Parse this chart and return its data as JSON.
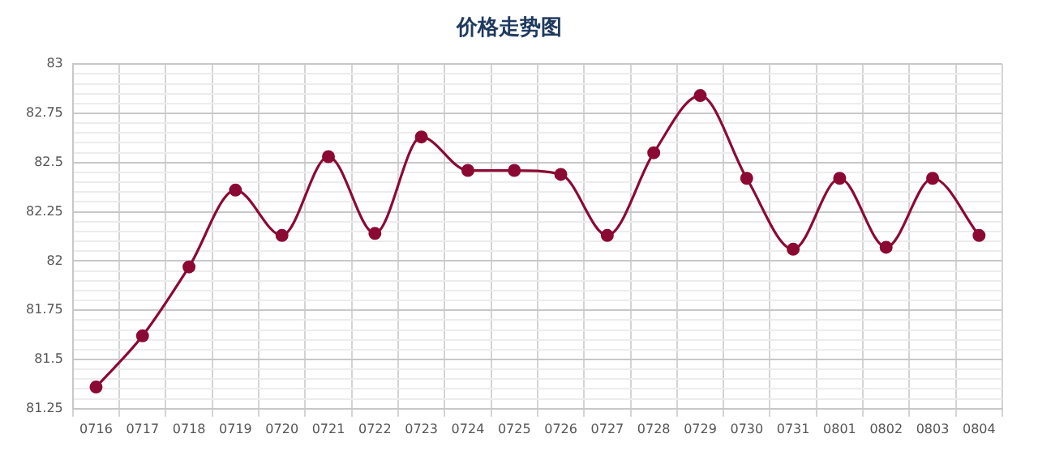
{
  "chart_data": {
    "type": "line",
    "title": "价格走势图",
    "categories": [
      "0716",
      "0717",
      "0718",
      "0719",
      "0720",
      "0721",
      "0722",
      "0723",
      "0724",
      "0725",
      "0726",
      "0727",
      "0728",
      "0729",
      "0730",
      "0731",
      "0801",
      "0802",
      "0803",
      "0804"
    ],
    "series": [
      {
        "color": "#8b0a34",
        "values": [
          81.36,
          81.62,
          81.97,
          82.36,
          82.13,
          82.53,
          82.14,
          82.63,
          82.46,
          82.46,
          82.44,
          82.13,
          82.55,
          82.84,
          82.42,
          82.06,
          82.42,
          82.07,
          82.42,
          82.13
        ]
      }
    ],
    "ylim": [
      81.25,
      83
    ],
    "yticks": [
      81.25,
      {
        "value": 81.3,
        "label": null
      },
      {
        "value": 81.35,
        "label": null
      },
      {
        "value": 81.4,
        "label": null
      },
      {
        "value": 81.45,
        "label": null
      },
      81.5,
      {
        "value": 81.55,
        "label": null
      },
      {
        "value": 81.6,
        "label": null
      },
      {
        "value": 81.65,
        "label": null
      },
      {
        "value": 81.7,
        "label": null
      },
      81.75,
      {
        "value": 81.8,
        "label": null
      },
      {
        "value": 81.85,
        "label": null
      },
      {
        "value": 81.9,
        "label": null
      },
      {
        "value": 81.95,
        "label": null
      },
      82,
      {
        "value": 82.05,
        "label": null
      },
      {
        "value": 82.1,
        "label": null
      },
      {
        "value": 82.15,
        "label": null
      },
      {
        "value": 82.2,
        "label": null
      },
      82.25,
      {
        "value": 82.3,
        "label": null
      },
      {
        "value": 82.35,
        "label": null
      },
      {
        "value": 82.4,
        "label": null
      },
      {
        "value": 82.45,
        "label": null
      },
      82.5,
      {
        "value": 82.55,
        "label": null
      },
      {
        "value": 82.6,
        "label": null
      },
      {
        "value": 82.65,
        "label": null
      },
      {
        "value": 82.7,
        "label": null
      },
      82.75,
      {
        "value": 82.8,
        "label": null
      },
      {
        "value": 82.85,
        "label": null
      },
      {
        "value": 82.9,
        "label": null
      },
      {
        "value": 82.95,
        "label": null
      },
      83
    ],
    "grid": true,
    "legend": false,
    "marker": "circle",
    "line_style": "solid"
  }
}
